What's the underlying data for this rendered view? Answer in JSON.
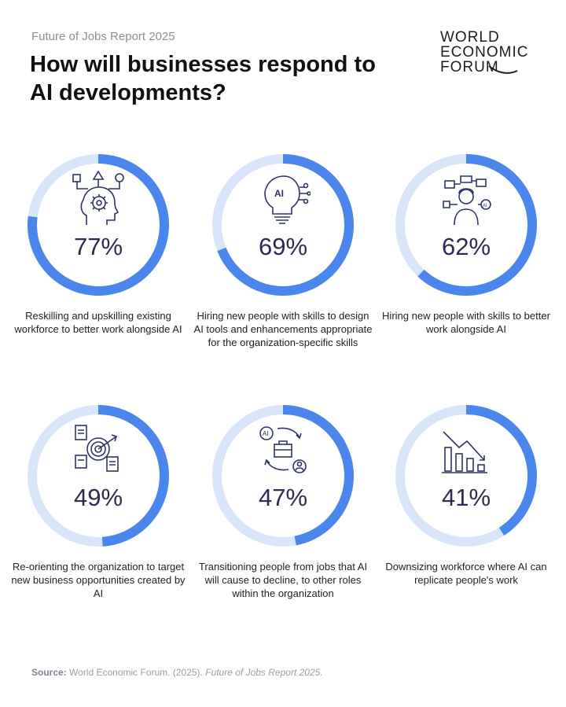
{
  "header": {
    "eyebrow": "Future of Jobs Report 2025",
    "title": "How will businesses respond to AI developments?"
  },
  "logo": {
    "lines": [
      "WORLD",
      "ECONOMIC",
      "FORUM"
    ]
  },
  "colors": {
    "ring_fill": "#4a86ec",
    "ring_track": "#d9e6fa",
    "icon": "#2b3566",
    "percent": "#2b2b55"
  },
  "chart_data": {
    "type": "pie",
    "unit": "%",
    "items": [
      {
        "percent_label": "77%",
        "value": 77,
        "caption": "Reskilling and upskilling existing workforce to better work alongside AI",
        "icon": "head-gear-icon"
      },
      {
        "percent_label": "69%",
        "value": 69,
        "caption": "Hiring new people with skills to design AI tools and enhancements appropriate for the organization-specific skills",
        "icon": "ai-lightbulb-icon"
      },
      {
        "percent_label": "62%",
        "value": 62,
        "caption": "Hiring new people with skills to better work alongside AI",
        "icon": "person-ai-network-icon"
      },
      {
        "percent_label": "49%",
        "value": 49,
        "caption": "Re-orienting the organization to target new business opportunities created by AI",
        "icon": "target-documents-icon"
      },
      {
        "percent_label": "47%",
        "value": 47,
        "caption": "Transitioning people from jobs that AI will cause to decline, to other roles within the organization",
        "icon": "briefcase-cycle-icon"
      },
      {
        "percent_label": "41%",
        "value": 41,
        "caption": "Downsizing workforce where AI can replicate people's work",
        "icon": "declining-bars-icon"
      }
    ]
  },
  "source": {
    "label": "Source:",
    "text": "World Economic Forum. (2025).",
    "title": "Future of Jobs Report 2025."
  }
}
